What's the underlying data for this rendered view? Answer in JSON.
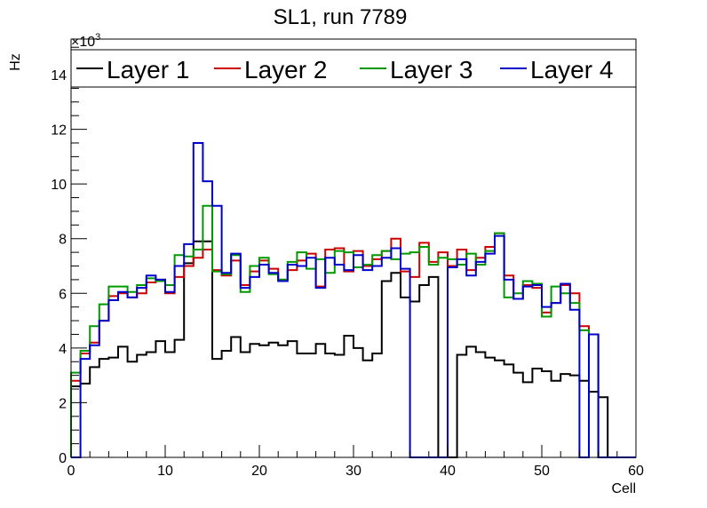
{
  "chart_data": {
    "type": "histogram-step",
    "title": "SL1, run 7789",
    "xlabel": "Cell",
    "ylabel": "Hz",
    "y_multiplier_label": "×10",
    "y_multiplier_exponent": "3",
    "xlim": [
      0,
      60
    ],
    "ylim": [
      0,
      15.3
    ],
    "x_ticks": [
      0,
      10,
      20,
      30,
      40,
      50,
      60
    ],
    "y_ticks": [
      0,
      2,
      4,
      6,
      8,
      10,
      12,
      14
    ],
    "grid": false,
    "legend_position": "top",
    "bin_width": 1,
    "series": [
      {
        "name": "Layer 1",
        "color": "#000000",
        "values": [
          2.6,
          2.7,
          3.3,
          3.6,
          3.65,
          4.05,
          3.5,
          3.75,
          3.85,
          4.25,
          3.85,
          4.3,
          7.1,
          7.9,
          7.9,
          3.6,
          3.9,
          4.4,
          3.85,
          4.15,
          4.1,
          4.2,
          4.1,
          4.25,
          3.8,
          3.8,
          4.15,
          3.8,
          3.75,
          4.45,
          4.0,
          3.55,
          3.8,
          6.45,
          6.75,
          5.85,
          5.7,
          6.3,
          6.6,
          0,
          0,
          3.75,
          4.05,
          3.85,
          3.65,
          3.55,
          3.4,
          3.1,
          2.75,
          3.25,
          3.15,
          2.8,
          3.05,
          3.0,
          2.8,
          2.4,
          2.2,
          0,
          0,
          0
        ]
      },
      {
        "name": "Layer 2",
        "color": "#cc0000",
        "values": [
          2.8,
          3.8,
          4.2,
          5.0,
          5.9,
          6.0,
          5.85,
          6.0,
          6.4,
          6.5,
          6.0,
          6.6,
          7.0,
          7.3,
          7.6,
          6.85,
          6.65,
          7.2,
          6.3,
          6.8,
          7.2,
          6.9,
          6.5,
          6.85,
          7.2,
          7.45,
          6.25,
          7.6,
          7.65,
          6.8,
          7.55,
          7.0,
          7.25,
          7.55,
          8.0,
          6.8,
          6.6,
          7.85,
          7.15,
          7.5,
          7.0,
          7.6,
          6.85,
          7.3,
          7.7,
          8.2,
          6.65,
          5.8,
          6.3,
          6.2,
          5.3,
          5.65,
          6.3,
          6.0,
          4.8,
          4.5,
          0,
          0,
          0,
          0
        ]
      },
      {
        "name": "Layer 3",
        "color": "#009900",
        "values": [
          3.1,
          3.9,
          4.8,
          5.6,
          6.25,
          6.25,
          6.05,
          6.3,
          6.55,
          6.45,
          6.3,
          7.4,
          7.35,
          7.6,
          9.2,
          6.8,
          6.7,
          7.4,
          6.05,
          7.0,
          7.3,
          6.7,
          6.5,
          7.15,
          7.5,
          6.9,
          7.25,
          6.75,
          7.55,
          7.5,
          6.95,
          7.05,
          7.4,
          7.55,
          7.25,
          7.45,
          7.5,
          7.7,
          7.05,
          7.3,
          7.25,
          7.05,
          7.45,
          7.05,
          7.55,
          8.2,
          5.85,
          6.0,
          6.45,
          6.35,
          5.15,
          6.25,
          6.0,
          5.65,
          4.65,
          4.5,
          0,
          0,
          0,
          0
        ]
      },
      {
        "name": "Layer 4",
        "color": "#0000cc",
        "values": [
          0,
          3.6,
          4.1,
          5.0,
          5.75,
          6.05,
          5.85,
          6.2,
          6.65,
          6.5,
          6.05,
          7.0,
          7.8,
          11.5,
          10.1,
          9.2,
          6.75,
          7.45,
          6.2,
          6.6,
          7.05,
          6.75,
          6.45,
          7.05,
          7.0,
          7.3,
          6.2,
          7.3,
          7.05,
          6.85,
          7.4,
          6.85,
          7.0,
          7.3,
          7.65,
          6.9,
          0,
          0,
          0,
          0,
          6.95,
          7.25,
          6.65,
          7.15,
          7.45,
          8.1,
          6.5,
          5.8,
          6.25,
          6.3,
          5.5,
          5.65,
          6.35,
          5.4,
          0,
          4.5,
          0,
          0,
          0,
          0
        ]
      }
    ]
  }
}
